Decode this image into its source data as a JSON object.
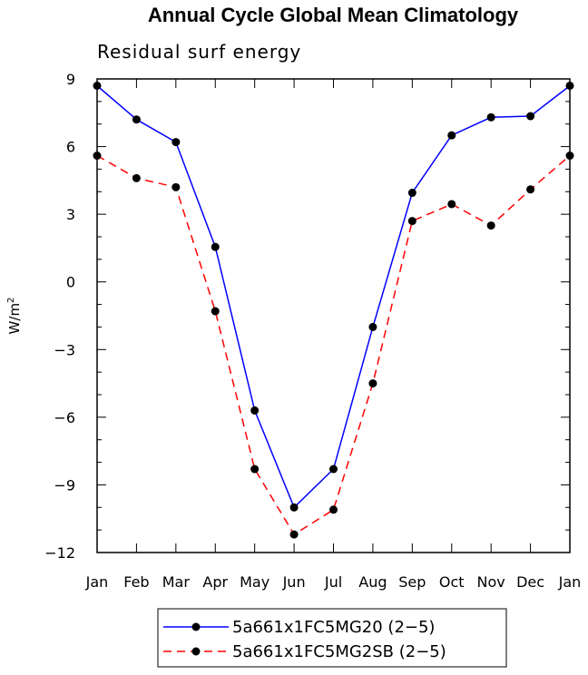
{
  "chart_data": {
    "type": "line",
    "title": "Annual Cycle Global Mean Climatology",
    "subtitle": "Residual surf energy",
    "xlabel": "",
    "ylabel": "W/m",
    "ylabel_superscript": "2",
    "categories": [
      "Jan",
      "Feb",
      "Mar",
      "Apr",
      "May",
      "Jun",
      "Jul",
      "Aug",
      "Sep",
      "Oct",
      "Nov",
      "Dec",
      "Jan"
    ],
    "ylim": [
      -12,
      9
    ],
    "yticks": [
      9,
      6,
      3,
      0,
      -3,
      -6,
      -9,
      -12
    ],
    "ytick_labels": [
      "9",
      "6",
      "3",
      "0",
      "−3",
      "−6",
      "−9",
      "−12"
    ],
    "grid": false,
    "legend_position": "bottom",
    "series": [
      {
        "name": "5a661x1FC5MG20 (2−5)",
        "color": "#0000ff",
        "dash": "solid",
        "marker": "circle",
        "values": [
          8.7,
          7.2,
          6.2,
          1.55,
          -5.7,
          -10.0,
          -8.3,
          -2.0,
          3.95,
          6.5,
          7.3,
          7.35,
          8.7
        ]
      },
      {
        "name": "5a661x1FC5MG2SB (2−5)",
        "color": "#ff0000",
        "dash": "dashed",
        "marker": "circle",
        "values": [
          5.6,
          4.6,
          4.2,
          -1.3,
          -8.3,
          -11.2,
          -10.1,
          -4.5,
          2.7,
          3.45,
          2.5,
          4.1,
          5.6
        ]
      }
    ]
  }
}
